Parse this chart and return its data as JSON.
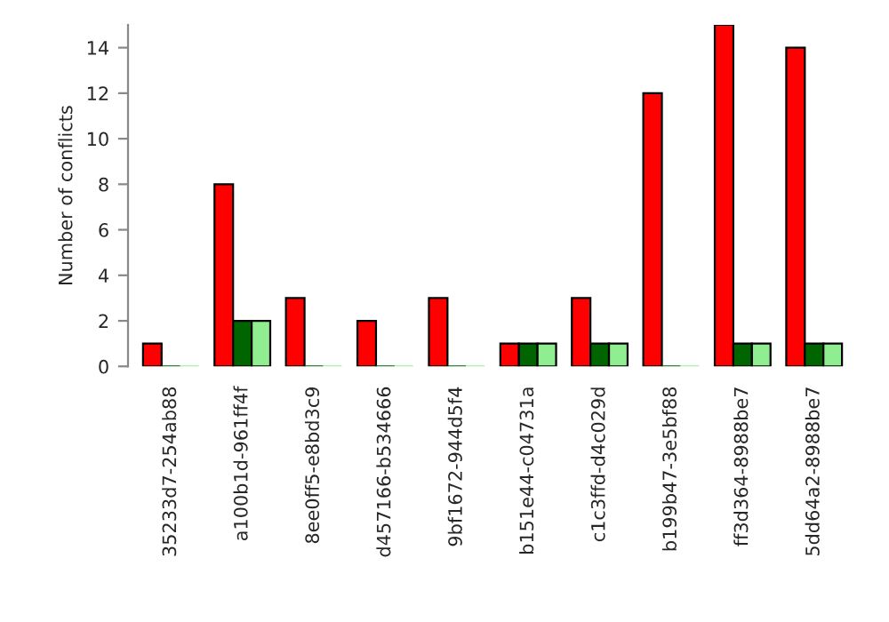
{
  "chart_data": {
    "type": "bar",
    "ylabel": "Number of conflicts",
    "categories": [
      "35233d7-254ab88",
      "a100b1d-961ff4f",
      "8ee0ff5-e8bd3c9",
      "d457166-b534666",
      "9bf1672-944d5f4",
      "b151e44-c04731a",
      "c1c3ffd-d4c029d",
      "b199b47-3e5bf88",
      "ff3d364-8988be7",
      "5dd64a2-8988be7"
    ],
    "series": [
      {
        "color": "#ff0000",
        "values": [
          1,
          8,
          3,
          2,
          3,
          1,
          3,
          12,
          15,
          14
        ]
      },
      {
        "color": "#006400",
        "values": [
          0,
          2,
          0,
          0,
          0,
          1,
          1,
          0,
          1,
          1
        ]
      },
      {
        "color": "#90ee90",
        "values": [
          0,
          2,
          0,
          0,
          0,
          1,
          1,
          0,
          1,
          1
        ]
      }
    ],
    "ylim": [
      0,
      15
    ],
    "yticks": [
      0,
      2,
      4,
      6,
      8,
      10,
      12,
      14
    ],
    "grid": false
  }
}
